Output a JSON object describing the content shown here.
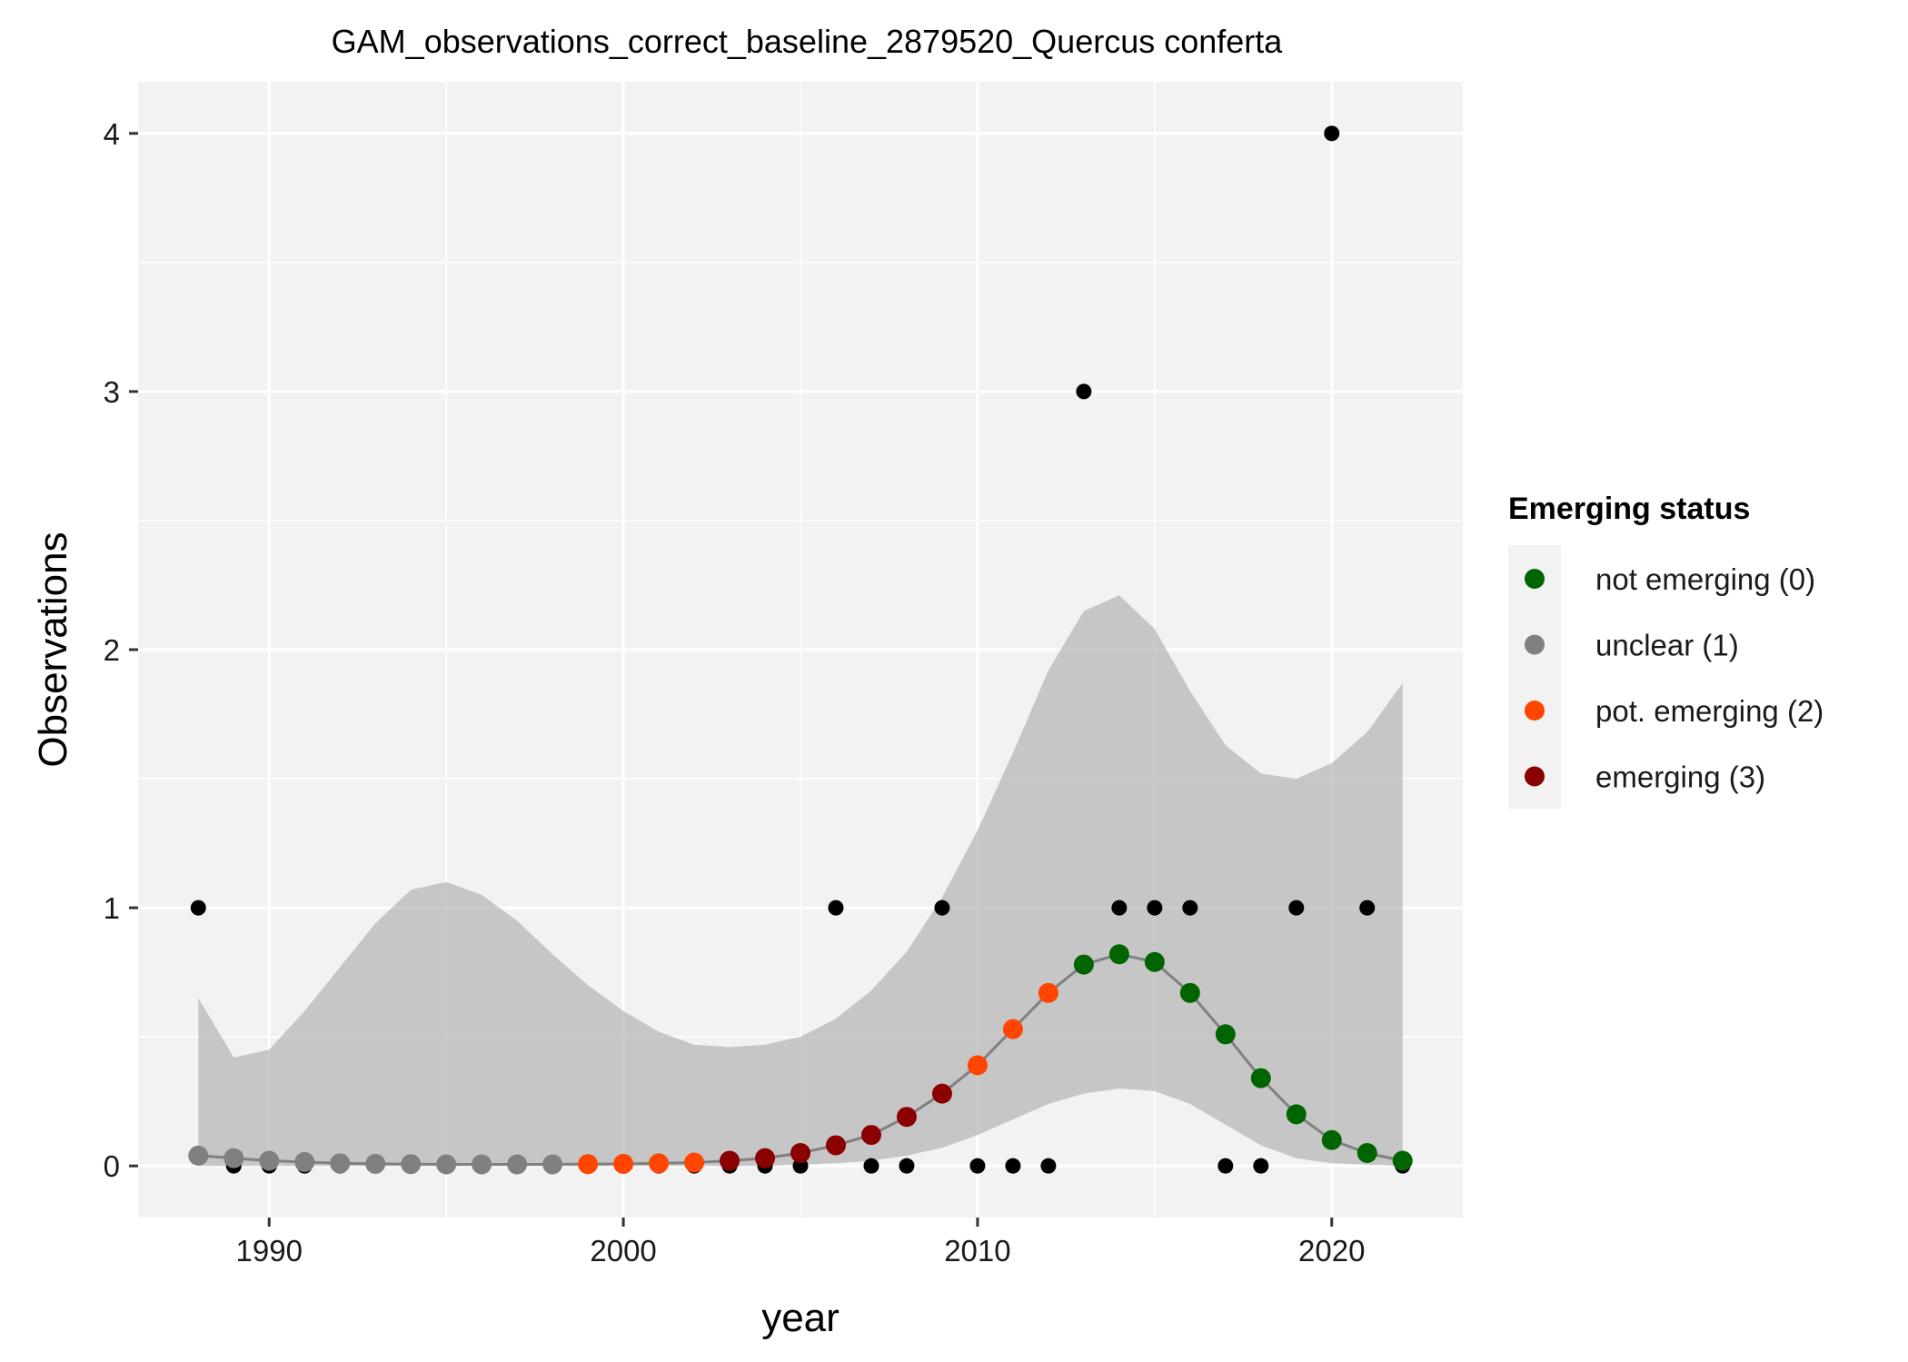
{
  "chart_data": {
    "type": "scatter",
    "title": "GAM_observations_correct_baseline_2879520_Quercus conferta",
    "xlabel": "year",
    "ylabel": "Observations",
    "xlim": [
      1986.3,
      2023.7
    ],
    "ylim": [
      -0.2,
      4.2
    ],
    "x_ticks": [
      1990,
      2000,
      2010,
      2020
    ],
    "y_ticks": [
      0,
      1,
      2,
      3,
      4
    ],
    "grid": true,
    "legend": {
      "title": "Emerging status",
      "placement": "right",
      "entries": [
        {
          "label": "not emerging (0)",
          "color": "#006400"
        },
        {
          "label": "unclear (1)",
          "color": "#808080"
        },
        {
          "label": "pot. emerging (2)",
          "color": "#ff4500"
        },
        {
          "label": "emerging (3)",
          "color": "#8b0000"
        }
      ]
    },
    "observations": {
      "x": [
        1988,
        1989,
        1990,
        1991,
        1992,
        1993,
        1994,
        1995,
        1996,
        1997,
        1998,
        1999,
        2000,
        2001,
        2002,
        2003,
        2004,
        2005,
        2006,
        2007,
        2008,
        2009,
        2010,
        2011,
        2012,
        2013,
        2014,
        2015,
        2016,
        2017,
        2018,
        2019,
        2020,
        2021,
        2022
      ],
      "y": [
        1,
        0,
        0,
        0,
        0,
        0,
        0,
        0,
        0,
        0,
        0,
        0,
        0,
        0,
        0,
        0,
        0,
        0,
        1,
        0,
        0,
        1,
        0,
        0,
        0,
        3,
        1,
        1,
        1,
        0,
        0,
        1,
        4,
        1,
        0
      ]
    },
    "fit": {
      "x": [
        1988,
        1989,
        1990,
        1991,
        1992,
        1993,
        1994,
        1995,
        1996,
        1997,
        1998,
        1999,
        2000,
        2001,
        2002,
        2003,
        2004,
        2005,
        2006,
        2007,
        2008,
        2009,
        2010,
        2011,
        2012,
        2013,
        2014,
        2015,
        2016,
        2017,
        2018,
        2019,
        2020,
        2021,
        2022
      ],
      "y": [
        0.04,
        0.03,
        0.02,
        0.015,
        0.01,
        0.008,
        0.007,
        0.006,
        0.006,
        0.006,
        0.006,
        0.007,
        0.008,
        0.01,
        0.013,
        0.02,
        0.03,
        0.05,
        0.08,
        0.12,
        0.19,
        0.28,
        0.39,
        0.53,
        0.67,
        0.78,
        0.82,
        0.79,
        0.67,
        0.51,
        0.34,
        0.2,
        0.1,
        0.05,
        0.02
      ],
      "status": [
        1,
        1,
        1,
        1,
        1,
        1,
        1,
        1,
        1,
        1,
        1,
        2,
        2,
        2,
        2,
        3,
        3,
        3,
        3,
        3,
        3,
        3,
        2,
        2,
        2,
        0,
        0,
        0,
        0,
        0,
        0,
        0,
        0,
        0,
        0
      ],
      "lower": [
        0,
        0,
        0,
        0,
        0,
        0,
        0,
        0,
        0,
        0,
        0,
        0,
        0,
        0,
        0,
        0,
        0,
        0.005,
        0.01,
        0.02,
        0.04,
        0.07,
        0.12,
        0.18,
        0.24,
        0.28,
        0.3,
        0.29,
        0.24,
        0.16,
        0.08,
        0.03,
        0.01,
        0.005,
        0
      ],
      "upper": [
        0.65,
        0.42,
        0.45,
        0.6,
        0.77,
        0.94,
        1.07,
        1.1,
        1.05,
        0.95,
        0.82,
        0.7,
        0.6,
        0.52,
        0.47,
        0.46,
        0.47,
        0.5,
        0.57,
        0.68,
        0.83,
        1.04,
        1.3,
        1.6,
        1.92,
        2.15,
        2.21,
        2.08,
        1.84,
        1.63,
        1.52,
        1.5,
        1.56,
        1.68,
        1.87
      ]
    }
  }
}
